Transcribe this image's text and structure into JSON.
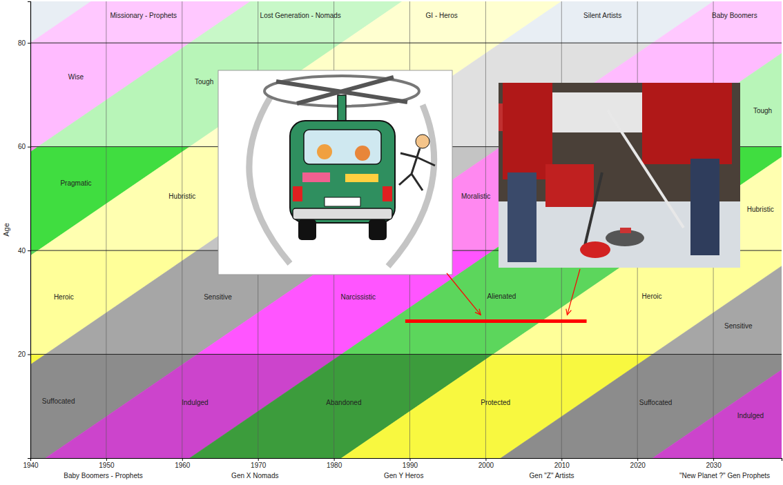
{
  "chart_data": {
    "type": "generations",
    "y_label": "Age",
    "xlim": [
      1940,
      2039
    ],
    "xticks": [
      1940,
      1950,
      1960,
      1970,
      1980,
      1990,
      2000,
      2010,
      2020,
      2030
    ],
    "ylim": [
      0,
      88
    ],
    "yticks": [
      20,
      40,
      60,
      80
    ],
    "grid": true,
    "phase_ages": [
      0,
      20,
      40,
      60,
      80
    ],
    "archetype_colors": [
      [
        "#cc44cc",
        "#ff55ff",
        "#ff88f0",
        "#ffbbff",
        "#ffc8ff"
      ],
      [
        "#3c9c3c",
        "#5cd65c",
        "#40dd40",
        "#b8f5b8",
        "#c8f8c8"
      ],
      [
        "#f8f840",
        "#ffff99",
        "#ffffb0",
        "#ffffc8",
        "#ffffd0"
      ],
      [
        "#8c8c8c",
        "#a6a6a6",
        "#c4c4c4",
        "#e0e0e0",
        "#e8eef4"
      ]
    ],
    "generations": [
      {
        "born": [
          1840,
          1860
        ],
        "archetype": 3
      },
      {
        "born": [
          1860,
          1881
        ],
        "archetype": 0
      },
      {
        "born": [
          1881,
          1901
        ],
        "archetype": 1
      },
      {
        "born": [
          1901,
          1922
        ],
        "archetype": 2
      },
      {
        "born": [
          1922,
          1942
        ],
        "archetype": 3
      },
      {
        "born": [
          1942,
          1961
        ],
        "archetype": 0
      },
      {
        "born": [
          1961,
          1981
        ],
        "archetype": 1
      },
      {
        "born": [
          1981,
          2002
        ],
        "archetype": 2
      },
      {
        "born": [
          2002,
          2022
        ],
        "archetype": 3
      },
      {
        "born": [
          2022,
          2042
        ],
        "archetype": 0
      }
    ],
    "phase_labels": [
      {
        "text": "Wise",
        "x": 1946,
        "y": 73
      },
      {
        "text": "Tough",
        "x": 1962.9,
        "y": 72
      },
      {
        "text": "Tough",
        "x": 2036.5,
        "y": 66.5
      },
      {
        "text": "Pragmatic",
        "x": 1946,
        "y": 52.5
      },
      {
        "text": "Hubristic",
        "x": 1960,
        "y": 50
      },
      {
        "text": "Moralistic",
        "x": 1998.7,
        "y": 50
      },
      {
        "text": "Hubristic",
        "x": 2036.2,
        "y": 47.5
      },
      {
        "text": "Heroic",
        "x": 1944.4,
        "y": 30.6
      },
      {
        "text": "Sensitive",
        "x": 1964.7,
        "y": 30.6
      },
      {
        "text": "Narcissistic",
        "x": 1983.2,
        "y": 30.6
      },
      {
        "text": "Alienated",
        "x": 2002.1,
        "y": 30.7
      },
      {
        "text": "Heroic",
        "x": 2021.9,
        "y": 30.7
      },
      {
        "text": "Sensitive",
        "x": 2033.3,
        "y": 25
      },
      {
        "text": "Suffocated",
        "x": 1943.7,
        "y": 10.5
      },
      {
        "text": "Indulged",
        "x": 1961.7,
        "y": 10.2
      },
      {
        "text": "Abandoned",
        "x": 1981.3,
        "y": 10.3
      },
      {
        "text": "Protected",
        "x": 2001.3,
        "y": 10.2
      },
      {
        "text": "Suffocated",
        "x": 2022.4,
        "y": 10.3
      },
      {
        "text": "Indulged",
        "x": 2034.9,
        "y": 7.7
      }
    ],
    "top_labels": [
      {
        "text": "Missionary - Prophets",
        "x": 1954.9,
        "y": 84.8
      },
      {
        "text": "Lost Generation - Nomads",
        "x": 1975.6,
        "y": 84.8
      },
      {
        "text": "GI - Heros",
        "x": 1994.2,
        "y": 84.8
      },
      {
        "text": "Silent Artists",
        "x": 2015.4,
        "y": 84.8
      },
      {
        "text": "Baby Boomers",
        "x": 2032.8,
        "y": 84.8
      }
    ],
    "bottom_labels": [
      {
        "text": "Baby Boomers - Prophets",
        "x": 1949.6
      },
      {
        "text": "Gen X Nomads",
        "x": 1969.6
      },
      {
        "text": "Gen Y  Heros",
        "x": 1989.2
      },
      {
        "text": "Gen \"Z\" Artists",
        "x": 2008.7
      },
      {
        "text": "\"New Planet ?\" Gen  Prophets",
        "x": 2031.5
      }
    ],
    "highlight": {
      "x": [
        1989.4,
        2013.3
      ],
      "y": 26.4,
      "color": "#ff0000"
    }
  }
}
